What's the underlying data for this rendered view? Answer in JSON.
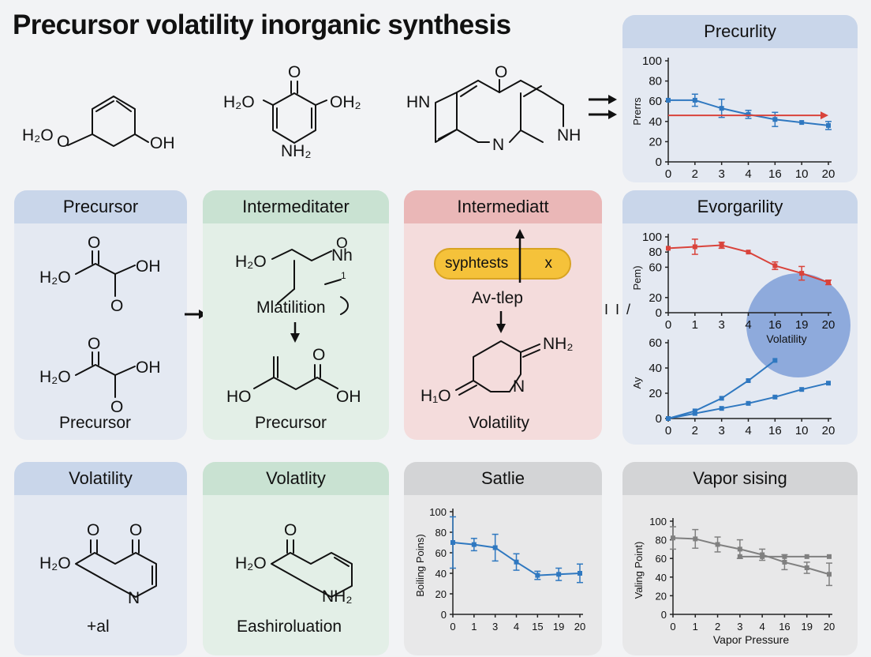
{
  "title": "Precursor volatility inorganic synthesis",
  "top_molecules": {
    "mol1": {
      "left": "H₂O",
      "mid": "O",
      "right": "OH"
    },
    "mol2": {
      "o_top": "O",
      "left": "H₂O",
      "right": "OH₂",
      "bottom": "NH₂"
    },
    "mol3": {
      "o_top": "O",
      "left": "HN",
      "n_mid": "N",
      "right": "NH"
    }
  },
  "panels": {
    "precurlity": {
      "header": "Precurlity"
    },
    "precursor": {
      "header": "Precursor",
      "m1": {
        "o": "O",
        "left": "H₂O",
        "right": "OH",
        "bottom": "O"
      },
      "m2": {
        "o": "O",
        "left": "H₂O",
        "right": "OH",
        "bottom": "O"
      },
      "caption": "Precursor"
    },
    "intermediater": {
      "header": "Intermeditater",
      "m1": {
        "left": "H₂O",
        "right": "Nh",
        "top": "O"
      },
      "mark": "1",
      "label": "Mlatilition",
      "m2": {
        "o": "O",
        "left": "HO",
        "right": "OH"
      },
      "caption": "Precursor"
    },
    "intermediatt": {
      "header": "Intermediatt",
      "pill_text": "syphtests",
      "pill_x": "x",
      "label": "Av-tlep",
      "mol": {
        "nh2": "NH₂",
        "n": "N",
        "left": "H₁O"
      },
      "caption": "Volatility"
    },
    "evorgarility": {
      "header": "Evorgarility",
      "bubble_label": "Volatility"
    },
    "volatility1": {
      "header": "Volatility",
      "mol": {
        "o1": "O",
        "o2": "O",
        "left": "H₂O",
        "n": "N"
      },
      "caption": "+al"
    },
    "volatlity2": {
      "header": "Volatlity",
      "mol": {
        "o": "O",
        "left": "H₂O",
        "nh2": "NH₂"
      },
      "caption": "Eashiroluation"
    },
    "satlie": {
      "header": "Satlie"
    },
    "vapor_sising": {
      "header": "Vapor sising"
    }
  },
  "connector_mark": "I I /",
  "colors": {
    "blue_series": "#2f78c0",
    "red_series": "#d9433b",
    "grey_series": "#808080",
    "bubble": "#7f9fd8",
    "pill": "#f5c23a"
  },
  "chart_data": [
    {
      "type": "line",
      "panel": "Precurlity",
      "ylabel": "Prerrs",
      "categories": [
        "0",
        "2",
        "3",
        "4",
        "16",
        "10",
        "20"
      ],
      "yticks": [
        0,
        20,
        40,
        60,
        80,
        100
      ],
      "ylim": [
        0,
        100
      ],
      "series": [
        {
          "color": "#2f78c0",
          "values": [
            61,
            61,
            53,
            47,
            42,
            39,
            36
          ],
          "errors": [
            0,
            6,
            9,
            4,
            7,
            0,
            4
          ]
        },
        {
          "color": "#d9433b",
          "values": [
            46,
            46,
            46,
            46,
            46,
            46,
            46
          ],
          "style": "flat arrow line"
        }
      ]
    },
    {
      "type": "line",
      "panel": "Evorgarility",
      "ylabel": "Pem)",
      "categories": [
        "0",
        "1",
        "3",
        "4",
        "16",
        "19",
        "20"
      ],
      "yticks": [
        0,
        20,
        60,
        80,
        100
      ],
      "ylim": [
        0,
        100
      ],
      "series": [
        {
          "color": "#d9433b",
          "values": [
            85,
            87,
            89,
            80,
            62,
            52,
            40
          ],
          "errors": [
            0,
            10,
            4,
            0,
            5,
            9,
            3
          ]
        }
      ]
    },
    {
      "type": "line",
      "panel": "Evorgarility (lower)",
      "ylabel": "Ay",
      "categories": [
        "0",
        "2",
        "3",
        "4",
        "16",
        "10",
        "20"
      ],
      "yticks": [
        0,
        20,
        40,
        60
      ],
      "ylim": [
        0,
        60
      ],
      "series": [
        {
          "color": "#2f78c0",
          "values": [
            0,
            6,
            16,
            30,
            46,
            null,
            null
          ]
        },
        {
          "color": "#2f78c0",
          "values": [
            0,
            4,
            8,
            12,
            17,
            23,
            28
          ]
        }
      ]
    },
    {
      "type": "line",
      "panel": "Satlie",
      "ylabel": "Boiling Poins)",
      "categories": [
        "0",
        "1",
        "3",
        "4",
        "15",
        "19",
        "20"
      ],
      "yticks": [
        0,
        20,
        40,
        60,
        80,
        100
      ],
      "ylim": [
        0,
        100
      ],
      "series": [
        {
          "color": "#2f78c0",
          "values": [
            70,
            68,
            65,
            51,
            38,
            39,
            40
          ],
          "errors": [
            25,
            6,
            13,
            8,
            4,
            6,
            9
          ]
        }
      ]
    },
    {
      "type": "line",
      "panel": "Vapor sising",
      "xlabel": "Vapor Pressure",
      "ylabel": "Valing Point)",
      "categories": [
        "0",
        "1",
        "2",
        "3",
        "4",
        "16",
        "19",
        "20"
      ],
      "yticks": [
        0,
        20,
        40,
        60,
        80,
        100
      ],
      "ylim": [
        0,
        100
      ],
      "series": [
        {
          "color": "#808080",
          "values": [
            82,
            81,
            75,
            70,
            64,
            56,
            50,
            43
          ],
          "errors": [
            12,
            10,
            8,
            10,
            6,
            8,
            6,
            12
          ]
        },
        {
          "color": "#808080",
          "values": [
            null,
            null,
            null,
            62,
            62,
            62,
            62,
            62
          ],
          "errors": [
            0,
            0,
            0,
            0,
            0,
            0,
            0,
            0
          ]
        }
      ]
    }
  ]
}
